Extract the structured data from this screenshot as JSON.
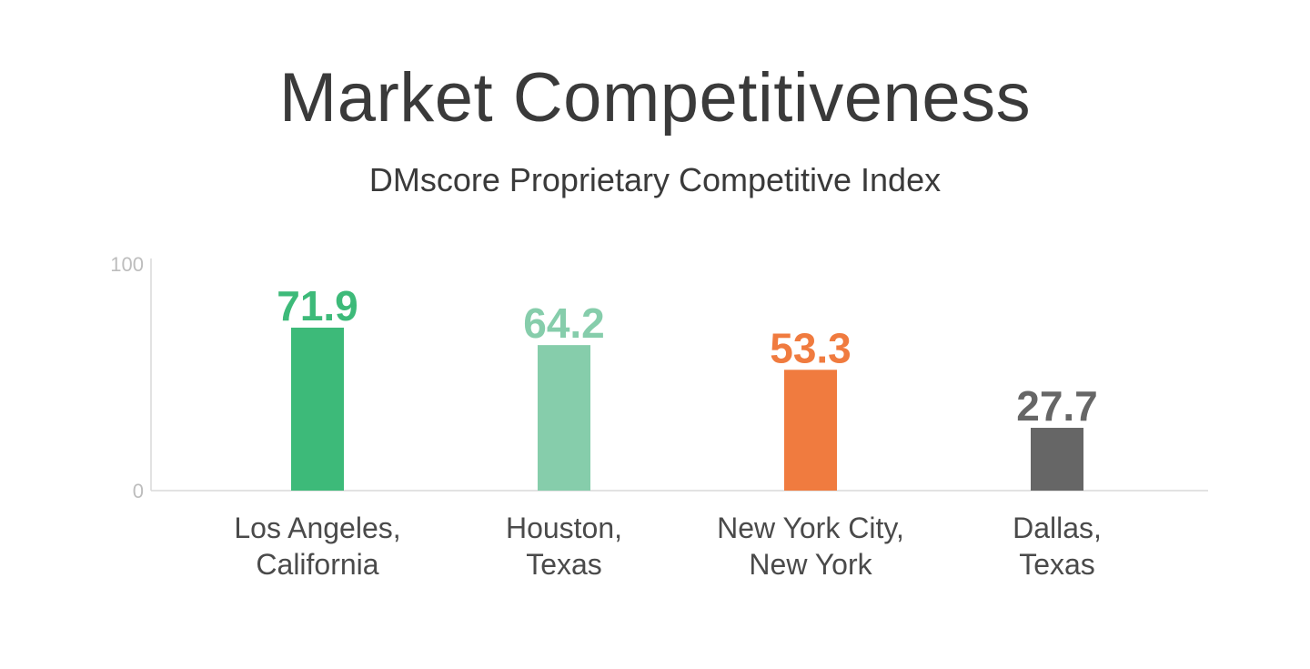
{
  "chart_data": {
    "type": "bar",
    "title": "Market Competitiveness",
    "subtitle": "DMscore Proprietary Competitive Index",
    "categories": [
      [
        "Los Angeles,",
        "California"
      ],
      [
        "Houston,",
        "Texas"
      ],
      [
        "New York City,",
        "New York"
      ],
      [
        "Dallas,",
        "Texas"
      ]
    ],
    "values": [
      71.9,
      64.2,
      53.3,
      27.7
    ],
    "value_labels": [
      "71.9",
      "64.2",
      "53.3",
      "27.7"
    ],
    "bar_colors": [
      "#3dba79",
      "#86cdab",
      "#f07b3f",
      "#666666"
    ],
    "ylim": [
      0,
      100
    ],
    "y_ticks": [
      "0",
      "100"
    ],
    "xlabel": "",
    "ylabel": "",
    "grid": false,
    "legend": "none"
  }
}
